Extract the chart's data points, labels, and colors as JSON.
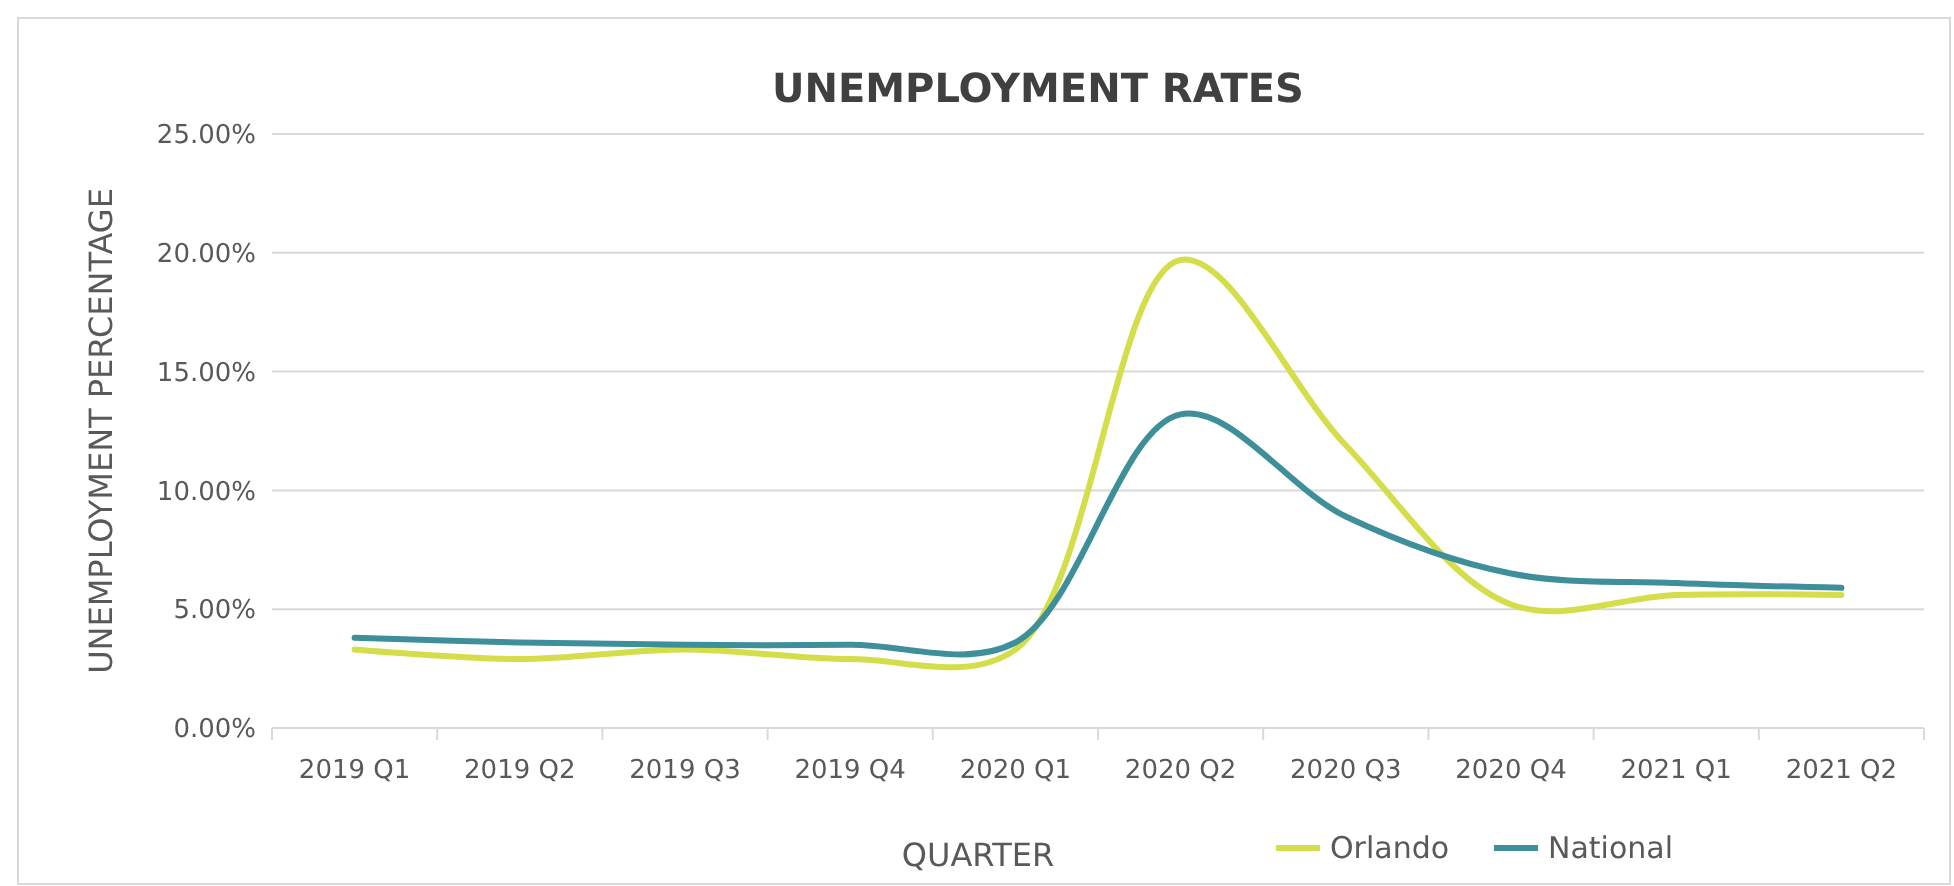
{
  "chart_data": {
    "type": "line",
    "title": "UNEMPLOYMENT RATES",
    "xlabel": "QUARTER",
    "ylabel": "UNEMPLOYMENT PERCENTAGE",
    "categories": [
      "2019 Q1",
      "2019 Q2",
      "2019 Q3",
      "2019 Q4",
      "2020 Q1",
      "2020 Q2",
      "2020 Q3",
      "2020 Q4",
      "2021 Q1",
      "2021 Q2"
    ],
    "series": [
      {
        "name": "Orlando",
        "color": "#d4de4a",
        "values": [
          3.3,
          2.9,
          3.3,
          2.9,
          3.3,
          19.7,
          11.9,
          5.2,
          5.6,
          5.6
        ]
      },
      {
        "name": "National",
        "color": "#3e8f9a",
        "values": [
          3.8,
          3.6,
          3.5,
          3.5,
          3.6,
          13.2,
          8.9,
          6.5,
          6.1,
          5.9
        ]
      }
    ],
    "ylim": [
      0,
      25
    ],
    "yticks": [
      {
        "value": 0,
        "label": "0.00%"
      },
      {
        "value": 5,
        "label": "5.00%"
      },
      {
        "value": 10,
        "label": "10.00%"
      },
      {
        "value": 15,
        "label": "15.00%"
      },
      {
        "value": 20,
        "label": "20.00%"
      },
      {
        "value": 25,
        "label": "25.00%"
      }
    ],
    "grid": "y",
    "legend": "bottom",
    "marker": "none",
    "line_style": "solid"
  }
}
